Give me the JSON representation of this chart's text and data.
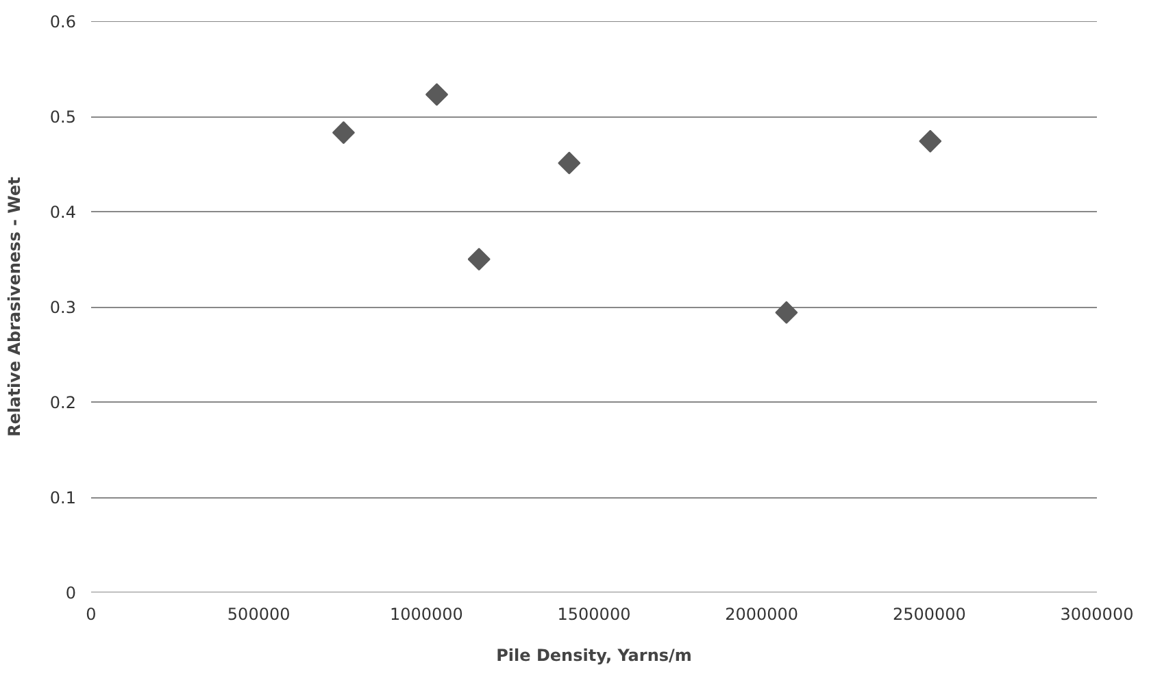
{
  "chart_data": {
    "type": "scatter",
    "xlabel": "Pile Density, Yarns/m",
    "ylabel": "Relative Abrasiveness - Wet",
    "x": [
      753000,
      1031000,
      1157000,
      1426000,
      2074000,
      2503000
    ],
    "series": [
      {
        "color": "#5a5a5a",
        "values": [
          0.483,
          0.523,
          0.35,
          0.451,
          0.294,
          0.474
        ]
      }
    ],
    "xlim": [
      0,
      3000000
    ],
    "xticks": [
      0,
      500000,
      1000000,
      1500000,
      2000000,
      2500000,
      3000000
    ],
    "ylim": [
      0,
      0.6
    ],
    "yticks": [
      0,
      0.1,
      0.2,
      0.3,
      0.4,
      0.5,
      0.6
    ],
    "grid": "y",
    "marker": "diamond"
  }
}
